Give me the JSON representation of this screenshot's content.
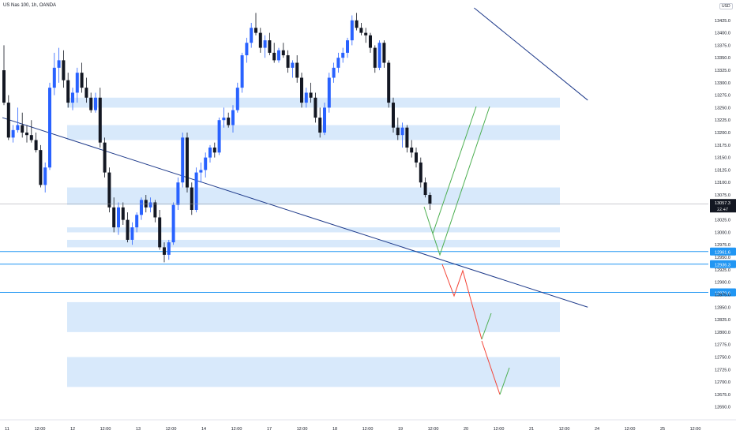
{
  "header": {
    "title": "US Nas 100, 1h, OANDA",
    "currency": "USD"
  },
  "current_price": {
    "value": "13057.3",
    "countdown": "22:47"
  },
  "chart_data": {
    "type": "candlestick",
    "symbol": "US Nas 100",
    "timeframe": "1h",
    "source": "OANDA",
    "y_ticks": [
      13425,
      13400,
      13375,
      13350,
      13325,
      13300,
      13275,
      13250,
      13225,
      13200,
      13175,
      13150,
      13125,
      13100,
      13075,
      13050,
      13025,
      13000,
      12975,
      12950,
      12925,
      12900,
      12875,
      12850,
      12825,
      12800,
      12775,
      12750,
      12725,
      12700,
      12675,
      12650
    ],
    "y_tick_labels": [
      "13425.0",
      "13400.0",
      "13375.0",
      "13350.0",
      "13325.0",
      "13300.0",
      "13275.0",
      "13250.0",
      "13225.0",
      "13200.0",
      "13175.0",
      "13150.0",
      "13125.0",
      "13100.0",
      "13075.0",
      "13050.0",
      "13025.0",
      "13000.0",
      "12975.0",
      "12950.0",
      "12925.0",
      "12900.0",
      "12875.0",
      "12850.0",
      "12825.0",
      "12800.0",
      "12775.0",
      "12750.0",
      "12725.0",
      "12700.0",
      "12675.0",
      "12650.0"
    ],
    "x_tick_labels": [
      "11",
      "12:00",
      "12",
      "12:00",
      "13",
      "12:00",
      "14",
      "12:00",
      "17",
      "12:00",
      "18",
      "12:00",
      "19",
      "12:00",
      "20",
      "12:00",
      "21",
      "12:00",
      "24",
      "12:00",
      "25",
      "12:00"
    ],
    "ylim": [
      12640,
      13450
    ],
    "candles": [
      [
        13325,
        13375,
        13255,
        13260
      ],
      [
        13260,
        13275,
        13185,
        13190
      ],
      [
        13190,
        13215,
        13180,
        13205
      ],
      [
        13205,
        13250,
        13200,
        13215
      ],
      [
        13215,
        13240,
        13190,
        13200
      ],
      [
        13200,
        13215,
        13180,
        13195
      ],
      [
        13195,
        13225,
        13180,
        13185
      ],
      [
        13185,
        13200,
        13160,
        13165
      ],
      [
        13165,
        13175,
        13090,
        13095
      ],
      [
        13095,
        13140,
        13080,
        13130
      ],
      [
        13130,
        13300,
        13125,
        13290
      ],
      [
        13290,
        13360,
        13275,
        13330
      ],
      [
        13330,
        13370,
        13300,
        13345
      ],
      [
        13345,
        13365,
        13290,
        13305
      ],
      [
        13305,
        13320,
        13250,
        13260
      ],
      [
        13260,
        13290,
        13245,
        13280
      ],
      [
        13280,
        13330,
        13260,
        13320
      ],
      [
        13320,
        13340,
        13280,
        13290
      ],
      [
        13290,
        13310,
        13260,
        13270
      ],
      [
        13270,
        13280,
        13240,
        13245
      ],
      [
        13245,
        13280,
        13240,
        13270
      ],
      [
        13270,
        13290,
        13170,
        13180
      ],
      [
        13180,
        13190,
        13110,
        13120
      ],
      [
        13120,
        13130,
        13040,
        13050
      ],
      [
        13050,
        13070,
        13000,
        13010
      ],
      [
        13010,
        13060,
        12995,
        13050
      ],
      [
        13050,
        13060,
        13015,
        13025
      ],
      [
        13025,
        13040,
        12980,
        12985
      ],
      [
        12985,
        13020,
        12975,
        13010
      ],
      [
        13010,
        13040,
        13000,
        13035
      ],
      [
        13035,
        13070,
        13025,
        13065
      ],
      [
        13065,
        13075,
        13040,
        13050
      ],
      [
        13050,
        13070,
        13040,
        13060
      ],
      [
        13060,
        13065,
        13020,
        13030
      ],
      [
        13030,
        13045,
        12965,
        12970
      ],
      [
        12970,
        12980,
        12940,
        12955
      ],
      [
        12955,
        12985,
        12945,
        12980
      ],
      [
        12980,
        13060,
        12975,
        13055
      ],
      [
        13055,
        13110,
        13045,
        13100
      ],
      [
        13100,
        13200,
        13090,
        13190
      ],
      [
        13190,
        13200,
        13080,
        13090
      ],
      [
        13090,
        13100,
        13035,
        13045
      ],
      [
        13045,
        13130,
        13040,
        13120
      ],
      [
        13120,
        13140,
        13100,
        13125
      ],
      [
        13125,
        13160,
        13110,
        13150
      ],
      [
        13150,
        13175,
        13140,
        13170
      ],
      [
        13170,
        13180,
        13150,
        13160
      ],
      [
        13160,
        13230,
        13155,
        13225
      ],
      [
        13225,
        13250,
        13210,
        13230
      ],
      [
        13230,
        13240,
        13210,
        13215
      ],
      [
        13215,
        13255,
        13200,
        13245
      ],
      [
        13245,
        13300,
        13240,
        13290
      ],
      [
        13290,
        13360,
        13280,
        13355
      ],
      [
        13355,
        13390,
        13340,
        13380
      ],
      [
        13380,
        13420,
        13370,
        13410
      ],
      [
        13410,
        13440,
        13395,
        13400
      ],
      [
        13400,
        13410,
        13360,
        13370
      ],
      [
        13370,
        13395,
        13350,
        13385
      ],
      [
        13385,
        13400,
        13355,
        13360
      ],
      [
        13360,
        13380,
        13340,
        13345
      ],
      [
        13345,
        13370,
        13340,
        13365
      ],
      [
        13365,
        13380,
        13350,
        13355
      ],
      [
        13355,
        13365,
        13320,
        13330
      ],
      [
        13330,
        13345,
        13310,
        13340
      ],
      [
        13340,
        13355,
        13300,
        13310
      ],
      [
        13310,
        13320,
        13250,
        13260
      ],
      [
        13260,
        13290,
        13250,
        13280
      ],
      [
        13280,
        13300,
        13260,
        13270
      ],
      [
        13270,
        13280,
        13220,
        13230
      ],
      [
        13230,
        13250,
        13190,
        13200
      ],
      [
        13200,
        13260,
        13195,
        13250
      ],
      [
        13250,
        13320,
        13240,
        13310
      ],
      [
        13310,
        13340,
        13300,
        13330
      ],
      [
        13330,
        13360,
        13320,
        13350
      ],
      [
        13350,
        13370,
        13340,
        13360
      ],
      [
        13360,
        13390,
        13350,
        13385
      ],
      [
        13385,
        13435,
        13375,
        13425
      ],
      [
        13425,
        13440,
        13405,
        13410
      ],
      [
        13410,
        13420,
        13395,
        13400
      ],
      [
        13400,
        13410,
        13380,
        13395
      ],
      [
        13395,
        13400,
        13360,
        13370
      ],
      [
        13370,
        13375,
        13320,
        13330
      ],
      [
        13330,
        13385,
        13325,
        13380
      ],
      [
        13380,
        13385,
        13330,
        13340
      ],
      [
        13340,
        13345,
        13250,
        13260
      ],
      [
        13260,
        13270,
        13200,
        13210
      ],
      [
        13210,
        13230,
        13185,
        13195
      ],
      [
        13195,
        13220,
        13170,
        13210
      ],
      [
        13210,
        13215,
        13160,
        13170
      ],
      [
        13170,
        13185,
        13150,
        13160
      ],
      [
        13160,
        13170,
        13130,
        13140
      ],
      [
        13140,
        13150,
        13090,
        13100
      ],
      [
        13100,
        13110,
        13070,
        13075
      ],
      [
        13075,
        13080,
        13045,
        13057
      ]
    ],
    "zones": [
      [
        13250,
        13270
      ],
      [
        13185,
        13215
      ],
      [
        13055,
        13090
      ],
      [
        13000,
        13010
      ],
      [
        12970,
        12985
      ],
      [
        12800,
        12860
      ],
      [
        12690,
        12750
      ]
    ],
    "horizontal_levels": [
      {
        "value": 12961.6,
        "label": "12961.6"
      },
      {
        "value": 12936.3,
        "label": "12936.3"
      },
      {
        "value": 12879.6,
        "label": "12879.6"
      }
    ],
    "trendlines": [
      {
        "from": [
          0,
          13230
        ],
        "to": [
          180,
          12850
        ]
      },
      {
        "from": [
          103,
          13450
        ],
        "to": [
          180,
          13265
        ]
      }
    ],
    "colors": {
      "bull": "#2962ff",
      "bear": "#131722",
      "zone": "#d8e9fb",
      "level": "#2196f3",
      "trend": "#1e3a8a",
      "up_arrow": "#4caf50",
      "down_arrow": "#f44336"
    }
  }
}
